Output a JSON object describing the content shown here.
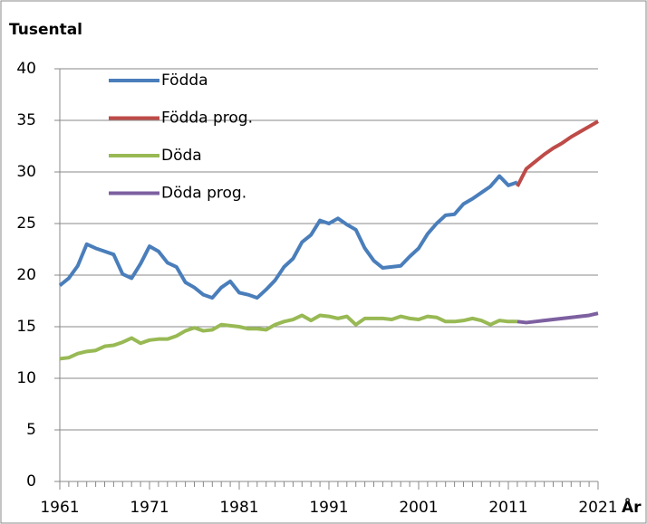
{
  "chart_data": {
    "type": "line",
    "ylabel": "Tusental",
    "xlabel": "År",
    "x": [
      1961,
      1962,
      1963,
      1964,
      1965,
      1966,
      1967,
      1968,
      1969,
      1970,
      1971,
      1972,
      1973,
      1974,
      1975,
      1976,
      1977,
      1978,
      1979,
      1980,
      1981,
      1982,
      1983,
      1984,
      1985,
      1986,
      1987,
      1988,
      1989,
      1990,
      1991,
      1992,
      1993,
      1994,
      1995,
      1996,
      1997,
      1998,
      1999,
      2000,
      2001,
      2002,
      2003,
      2004,
      2005,
      2006,
      2007,
      2008,
      2009,
      2010,
      2011,
      2012,
      2013,
      2014,
      2015,
      2016,
      2017,
      2018,
      2019,
      2020,
      2021
    ],
    "series": [
      {
        "name": "Födda",
        "color": "#4a7ebb",
        "values": [
          19.0,
          19.7,
          20.9,
          23.0,
          22.6,
          22.3,
          22.0,
          20.1,
          19.7,
          21.1,
          22.8,
          22.3,
          21.2,
          20.8,
          19.3,
          18.8,
          18.1,
          17.8,
          18.8,
          19.4,
          18.3,
          18.1,
          17.8,
          18.6,
          19.5,
          20.8,
          21.6,
          23.2,
          23.9,
          25.3,
          25.0,
          25.5,
          24.9,
          24.4,
          22.6,
          21.4,
          20.7,
          20.8,
          20.9,
          21.8,
          22.6,
          24.0,
          25.0,
          25.8,
          25.9,
          26.9,
          27.4,
          28.0,
          28.6,
          29.6,
          28.7,
          29.0,
          null,
          null,
          null,
          null,
          null,
          null,
          null,
          null,
          null
        ]
      },
      {
        "name": "Födda prog.",
        "color": "#be4b48",
        "values": [
          null,
          null,
          null,
          null,
          null,
          null,
          null,
          null,
          null,
          null,
          null,
          null,
          null,
          null,
          null,
          null,
          null,
          null,
          null,
          null,
          null,
          null,
          null,
          null,
          null,
          null,
          null,
          null,
          null,
          null,
          null,
          null,
          null,
          null,
          null,
          null,
          null,
          null,
          null,
          null,
          null,
          null,
          null,
          null,
          null,
          null,
          null,
          null,
          null,
          null,
          null,
          28.6,
          30.3,
          31.0,
          31.7,
          32.3,
          32.8,
          33.4,
          33.9,
          34.4,
          34.9
        ]
      },
      {
        "name": "Döda",
        "color": "#98b954",
        "values": [
          11.9,
          12.0,
          12.4,
          12.6,
          12.7,
          13.1,
          13.2,
          13.5,
          13.9,
          13.4,
          13.7,
          13.8,
          13.8,
          14.1,
          14.6,
          14.9,
          14.6,
          14.7,
          15.2,
          15.1,
          15.0,
          14.8,
          14.8,
          14.7,
          15.2,
          15.5,
          15.7,
          16.1,
          15.6,
          16.1,
          16.0,
          15.8,
          16.0,
          15.2,
          15.8,
          15.8,
          15.8,
          15.7,
          16.0,
          15.8,
          15.7,
          16.0,
          15.9,
          15.5,
          15.5,
          15.6,
          15.8,
          15.6,
          15.2,
          15.6,
          15.5,
          15.5,
          null,
          null,
          null,
          null,
          null,
          null,
          null,
          null,
          null
        ]
      },
      {
        "name": "Döda prog.",
        "color": "#7d60a0",
        "values": [
          null,
          null,
          null,
          null,
          null,
          null,
          null,
          null,
          null,
          null,
          null,
          null,
          null,
          null,
          null,
          null,
          null,
          null,
          null,
          null,
          null,
          null,
          null,
          null,
          null,
          null,
          null,
          null,
          null,
          null,
          null,
          null,
          null,
          null,
          null,
          null,
          null,
          null,
          null,
          null,
          null,
          null,
          null,
          null,
          null,
          null,
          null,
          null,
          null,
          null,
          null,
          15.5,
          15.4,
          15.5,
          15.6,
          15.7,
          15.8,
          15.9,
          16.0,
          16.1,
          16.3
        ]
      }
    ],
    "xlim": [
      1961,
      2021
    ],
    "xticks": [
      1961,
      1971,
      1981,
      1991,
      2001,
      2011,
      2021
    ],
    "ylim": [
      0,
      40
    ],
    "yticks": [
      0,
      5,
      10,
      15,
      20,
      25,
      30,
      35,
      40
    ],
    "grid": true,
    "legend": "upper-left"
  }
}
